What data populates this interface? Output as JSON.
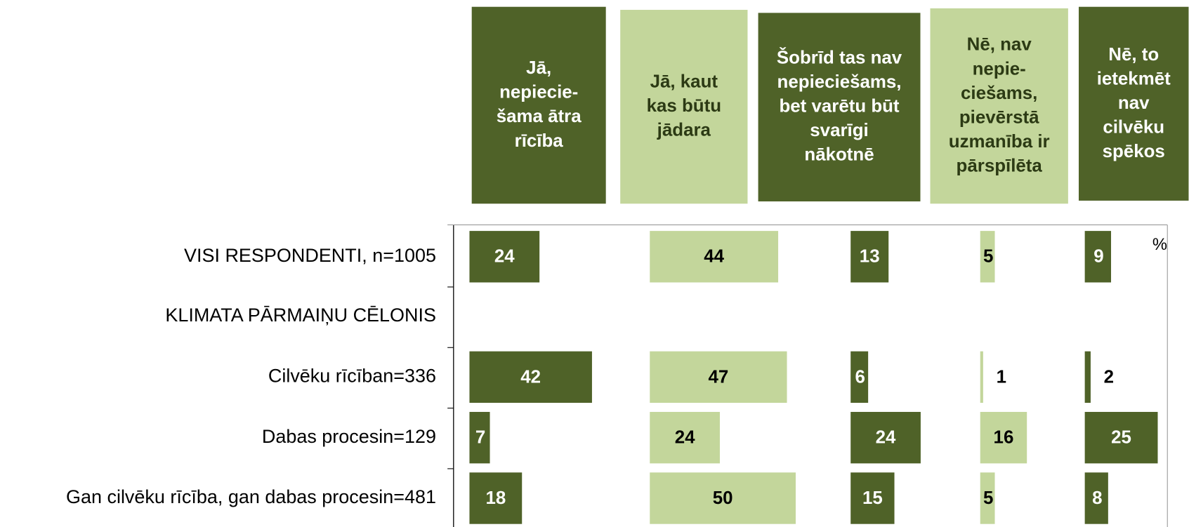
{
  "chart_data": {
    "type": "bar",
    "orientation": "horizontal",
    "unit": "%",
    "categories": [
      "VISI RESPONDENTI, n=1005",
      "KLIMATA PĀRMAIŅU CĒLONIS",
      "Cilvēku rīcīban=336",
      "Dabas procesin=129",
      "Gan cilvēku rīcība, gan dabas procesin=481"
    ],
    "series": [
      {
        "name": "Jā,\nnepiecie-\nšama ātra\nrīcība",
        "color": "#4f6228",
        "values": [
          24,
          null,
          42,
          7,
          18
        ]
      },
      {
        "name": "Jā, kaut\nkas būtu\njādara",
        "color": "#c3d69b",
        "values": [
          44,
          null,
          47,
          24,
          50
        ]
      },
      {
        "name": "Šobrīd tas nav\nnepieciešams,\nbet varētu būt\nsvarīgi\nnākotnē",
        "color": "#4f6228",
        "values": [
          13,
          null,
          6,
          24,
          15
        ]
      },
      {
        "name": "Nē, nav\nnepie-\nciešams,\npievērstā\nuzmanība ir\npārspīlēta",
        "color": "#c3d69b",
        "values": [
          5,
          null,
          1,
          16,
          5
        ]
      },
      {
        "name": "Nē, to\nietekmēt\nnav\ncilvēku\nspēkos",
        "color": "#4f6228",
        "values": [
          9,
          null,
          2,
          25,
          8
        ]
      }
    ]
  }
}
